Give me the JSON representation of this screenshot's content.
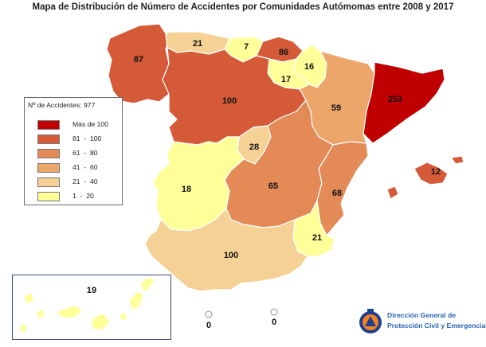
{
  "title": "Mapa de Distribución de Número de Accidentes por Comunidades Autómomas entre 2008 y 2017",
  "colors": {
    "over_100": "#c00000",
    "r81_100": "#d55a37",
    "r61_80": "#e38a57",
    "r41_60": "#eda66a",
    "r21_40": "#f5d195",
    "r1_20": "#ffff99",
    "sea": "#ffffff",
    "border": "#ffffff",
    "outline": "#9a9a9a"
  },
  "legend": {
    "header": "Nº de Accidentes: 977",
    "items": [
      {
        "label": "Más de 100",
        "color": "#c00000"
      },
      {
        "label": "81  -  100",
        "color": "#d55a37"
      },
      {
        "label": "61  -  80",
        "color": "#e38a57"
      },
      {
        "label": "41  -  60",
        "color": "#eda66a"
      },
      {
        "label": "21  -  40",
        "color": "#f5d195"
      },
      {
        "label": "1  -  20",
        "color": "#ffff99"
      }
    ]
  },
  "regions": [
    {
      "name": "galicia",
      "value": "87",
      "color": "#d55a37"
    },
    {
      "name": "asturias",
      "value": "21",
      "color": "#f5d195"
    },
    {
      "name": "cantabria",
      "value": "7",
      "color": "#ffff99"
    },
    {
      "name": "pais-vasco",
      "value": "86",
      "color": "#d55a37"
    },
    {
      "name": "navarra",
      "value": "16",
      "color": "#ffff99"
    },
    {
      "name": "la-rioja",
      "value": "17",
      "color": "#ffff99"
    },
    {
      "name": "aragon",
      "value": "59",
      "color": "#eda66a"
    },
    {
      "name": "cataluna",
      "value": "253",
      "color": "#c00000"
    },
    {
      "name": "castilla-y-leon",
      "value": "100",
      "color": "#d55a37"
    },
    {
      "name": "madrid",
      "value": "28",
      "color": "#f5d195"
    },
    {
      "name": "castilla-la-mancha",
      "value": "65",
      "color": "#e38a57"
    },
    {
      "name": "valencia",
      "value": "68",
      "color": "#e38a57"
    },
    {
      "name": "baleares",
      "value": "12",
      "color": "#ffff99"
    },
    {
      "name": "extremadura",
      "value": "18",
      "color": "#ffff99"
    },
    {
      "name": "murcia",
      "value": "21",
      "color": "#f5d195"
    },
    {
      "name": "andalucia",
      "value": "100",
      "color": "#d55a37"
    },
    {
      "name": "canarias",
      "value": "19",
      "color": "#ffff99"
    },
    {
      "name": "ceuta",
      "value": "0",
      "color": "#ffffff"
    },
    {
      "name": "melilla",
      "value": "0",
      "color": "#ffffff"
    }
  ],
  "logo": {
    "line1": "Dirección General de",
    "line2": "Protección Civil y Emergencias"
  }
}
